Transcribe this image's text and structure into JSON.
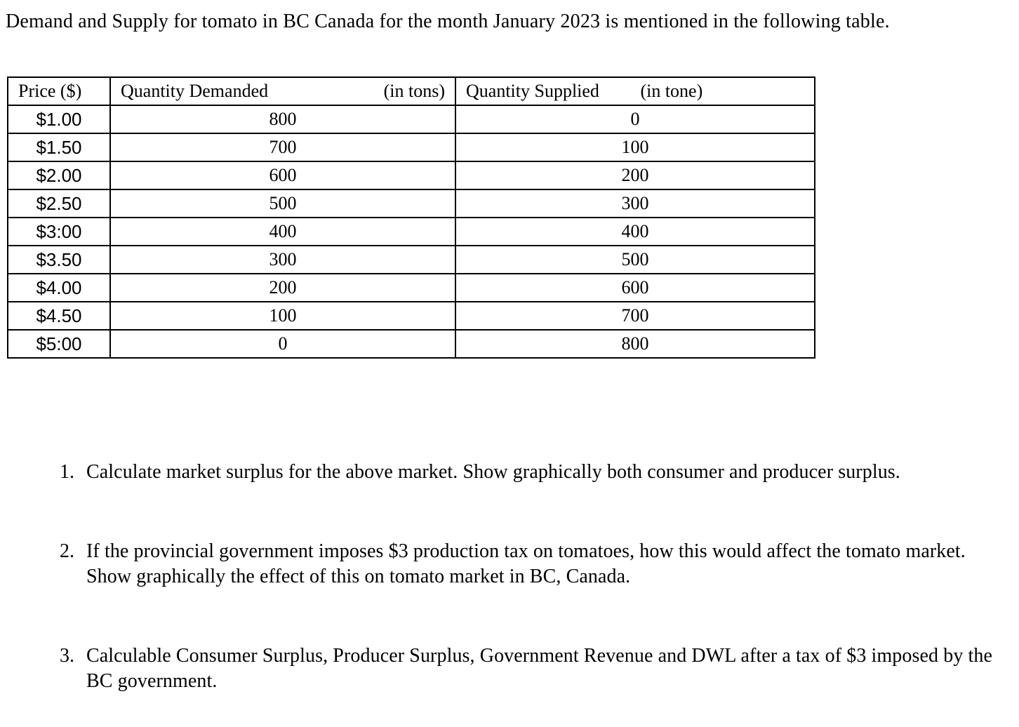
{
  "document": {
    "intro": "Demand and Supply for tomato in BC Canada for the month January 2023 is mentioned in the following table.",
    "table": {
      "headers": {
        "price": "Price ($)",
        "demanded": "Quantity Demanded",
        "demanded_unit": "(in tons)",
        "supplied": "Quantity Supplied",
        "supplied_unit": "(in tone)"
      },
      "rows": [
        {
          "price": "$1.00",
          "demanded": "800",
          "supplied": "0"
        },
        {
          "price": "$1.50",
          "demanded": "700",
          "supplied": "100"
        },
        {
          "price": "$2.00",
          "demanded": "600",
          "supplied": "200"
        },
        {
          "price": "$2.50",
          "demanded": "500",
          "supplied": "300"
        },
        {
          "price": "$3:00",
          "demanded": "400",
          "supplied": "400"
        },
        {
          "price": "$3.50",
          "demanded": "300",
          "supplied": "500"
        },
        {
          "price": "$4.00",
          "demanded": "200",
          "supplied": "600"
        },
        {
          "price": "$4.50",
          "demanded": "100",
          "supplied": "700"
        },
        {
          "price": "$5:00",
          "demanded": "0",
          "supplied": "800"
        }
      ]
    },
    "questions": [
      {
        "number": "1.",
        "text": "Calculate market surplus for the above market. Show graphically both consumer and producer surplus."
      },
      {
        "number": "2.",
        "text": "If the provincial government imposes $3 production tax on tomatoes, how this would affect the tomato market.  Show graphically the effect of this on tomato market in BC, Canada."
      },
      {
        "number": "3.",
        "text": "Calculable Consumer Surplus, Producer Surplus, Government Revenue and DWL after a tax of $3 imposed by the BC government."
      }
    ]
  }
}
